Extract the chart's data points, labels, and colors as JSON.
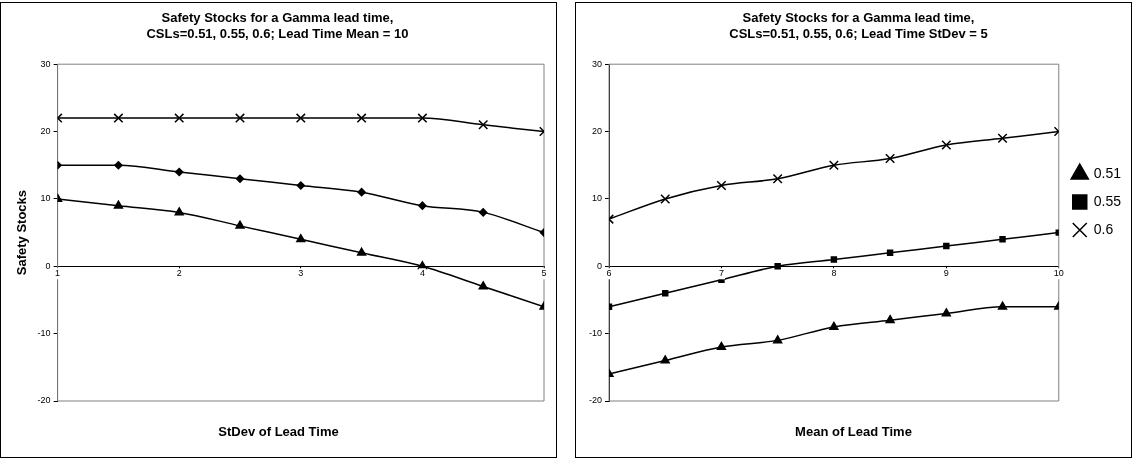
{
  "chart_data": [
    {
      "type": "line",
      "title": "Safety Stocks for a Gamma lead time,\nCSLs=0.51, 0.55, 0.6; Lead Time Mean = 10",
      "xlabel": "StDev of Lead Time",
      "ylabel": "Safety Stocks",
      "x": [
        1,
        1.5,
        2,
        2.5,
        3,
        3.5,
        4,
        4.5,
        5
      ],
      "xlim": [
        1,
        5
      ],
      "xticks": [
        1,
        2,
        3,
        4,
        5
      ],
      "ylim": [
        -20,
        30
      ],
      "yticks": [
        -20,
        -10,
        0,
        10,
        20,
        30
      ],
      "grid": false,
      "legend": false,
      "series": [
        {
          "color": "#000000",
          "marker": "triangle",
          "values": [
            10,
            9,
            8,
            6,
            4,
            2,
            0,
            -3,
            -6
          ]
        },
        {
          "color": "#000000",
          "marker": "diamond",
          "values": [
            15,
            15,
            14,
            13,
            12,
            11,
            9,
            8,
            5
          ]
        },
        {
          "color": "#000000",
          "marker": "cross",
          "values": [
            22,
            22,
            22,
            22,
            22,
            22,
            22,
            21,
            20
          ]
        }
      ]
    },
    {
      "type": "line",
      "title": "Safety Stocks for a Gamma lead time,\nCSLs=0.51, 0.55, 0.6; Lead Time StDev = 5",
      "xlabel": "Mean of Lead Time",
      "x": [
        6,
        6.5,
        7,
        7.5,
        8,
        8.5,
        9,
        9.5,
        10
      ],
      "xlim": [
        6,
        10
      ],
      "xticks": [
        6,
        7,
        8,
        9,
        10
      ],
      "ylim": [
        -20,
        30
      ],
      "yticks": [
        -20,
        -10,
        0,
        10,
        20,
        30
      ],
      "grid": false,
      "legend": "right",
      "series": [
        {
          "name": "0.51",
          "color": "#000000",
          "marker": "triangle",
          "values": [
            -16,
            -14,
            -12,
            -11,
            -9,
            -8,
            -7,
            -6,
            -6
          ]
        },
        {
          "name": "0.55",
          "color": "#000000",
          "marker": "square",
          "values": [
            -6,
            -4,
            -2,
            0,
            1,
            2,
            3,
            4,
            5
          ]
        },
        {
          "name": "0.6",
          "color": "#000000",
          "marker": "cross",
          "values": [
            7,
            10,
            12,
            13,
            15,
            16,
            18,
            19,
            20
          ]
        }
      ]
    }
  ]
}
